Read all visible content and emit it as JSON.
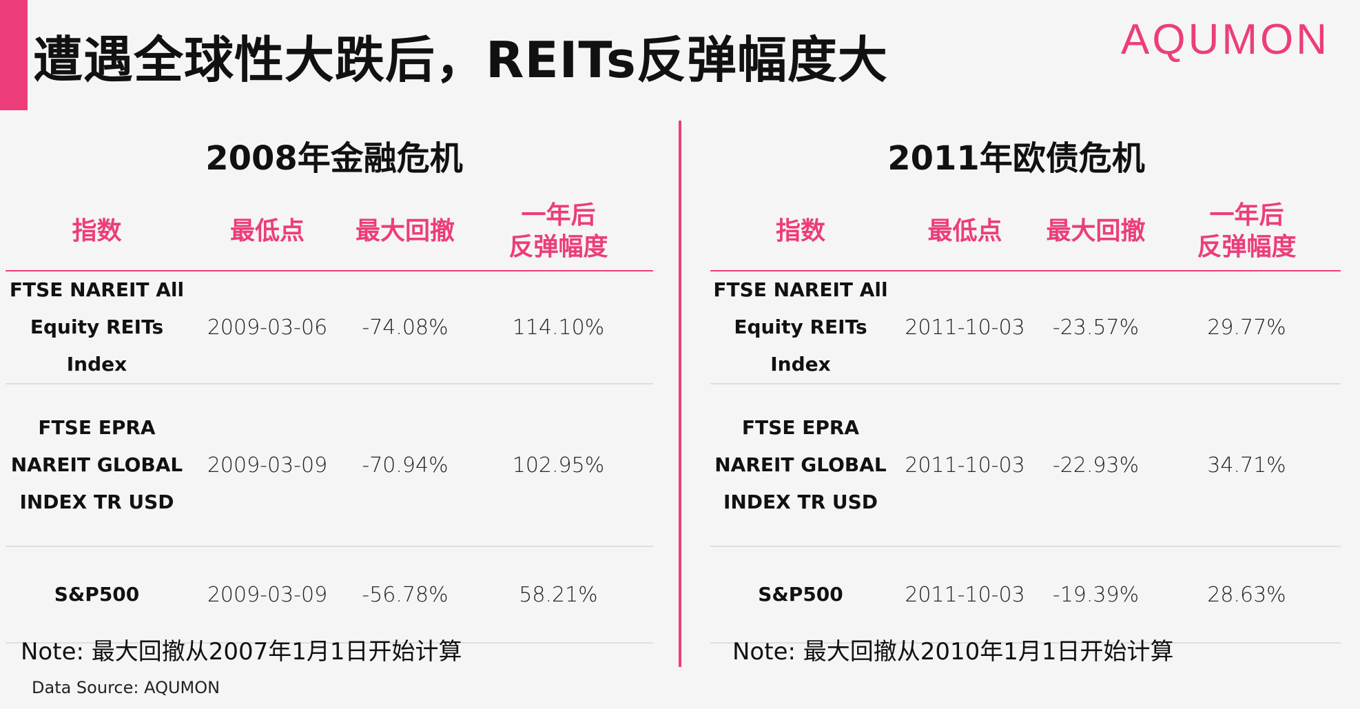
{
  "header": {
    "title": "遭遇全球性大跌后，REITs反弹幅度大",
    "logo": "AQUMON"
  },
  "colors": {
    "accent": "#ec3d7a",
    "text": "#111111",
    "background": "#f5f5f5"
  },
  "columns": [
    "指数",
    "最低点",
    "最大回撤",
    "一年后",
    "反弹幅度"
  ],
  "panels": [
    {
      "title": "2008年金融危机",
      "rows": [
        {
          "name": [
            "FTSE NAREIT All",
            "Equity REITs Index"
          ],
          "low": "2009-03-06",
          "drawdown": "-74.08%",
          "rebound": "114.10%"
        },
        {
          "name": [
            "FTSE EPRA",
            "NAREIT GLOBAL",
            "INDEX TR USD"
          ],
          "low": "2009-03-09",
          "drawdown": "-70.94%",
          "rebound": "102.95%"
        },
        {
          "name": [
            "S&P500"
          ],
          "low": "2009-03-09",
          "drawdown": "-56.78%",
          "rebound": "58.21%"
        }
      ],
      "note": "Note: 最大回撤从2007年1月1日开始计算"
    },
    {
      "title": "2011年欧债危机",
      "rows": [
        {
          "name": [
            "FTSE NAREIT All",
            "Equity REITs Index"
          ],
          "low": "2011-10-03",
          "drawdown": "-23.57%",
          "rebound": "29.77%"
        },
        {
          "name": [
            "FTSE EPRA",
            "NAREIT GLOBAL",
            "INDEX TR USD"
          ],
          "low": "2011-10-03",
          "drawdown": "-22.93%",
          "rebound": "34.71%"
        },
        {
          "name": [
            "S&P500"
          ],
          "low": "2011-10-03",
          "drawdown": "-19.39%",
          "rebound": "28.63%"
        }
      ],
      "note": "Note: 最大回撤从2010年1月1日开始计算"
    }
  ],
  "source": "Data Source: AQUMON"
}
